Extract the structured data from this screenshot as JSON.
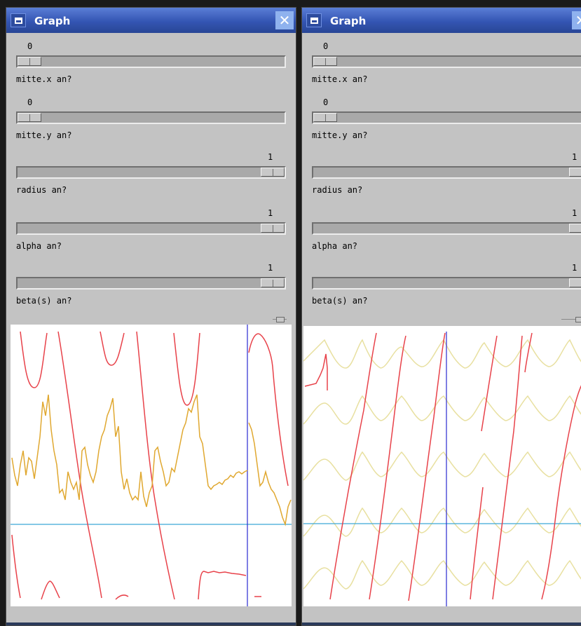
{
  "windows": [
    {
      "title": "Graph",
      "close_glyph": "✕",
      "sliders": [
        {
          "label": "mitte.x an?",
          "value": "0",
          "fraction": 0
        },
        {
          "label": "mitte.y an?",
          "value": "0",
          "fraction": 0
        },
        {
          "label": "radius an?",
          "value": "1",
          "fraction": 1
        },
        {
          "label": "alpha an?",
          "value": "1",
          "fraction": 1
        },
        {
          "label": "beta(s) an?",
          "value": "1",
          "fraction": 1
        }
      ]
    },
    {
      "title": "Graph",
      "close_glyph": "✕",
      "sliders": [
        {
          "label": "mitte.x an?",
          "value": "0",
          "fraction": 0
        },
        {
          "label": "mitte.y an?",
          "value": "0",
          "fraction": 0
        },
        {
          "label": "radius an?",
          "value": "1",
          "fraction": 1
        },
        {
          "label": "alpha an?",
          "value": "1",
          "fraction": 1
        },
        {
          "label": "beta(s) an?",
          "value": "1",
          "fraction": 1
        }
      ]
    }
  ],
  "icons": {
    "window_menu": "window-icon",
    "close": "close-icon"
  },
  "colors": {
    "title_bar": "#3455b3",
    "red_curve": "#e8424a",
    "orange_curve": "#e0a830",
    "pale_curve": "#e8e0a0",
    "axis_horizontal": "#3aa8d8",
    "axis_vertical": "#2a2ad0"
  }
}
